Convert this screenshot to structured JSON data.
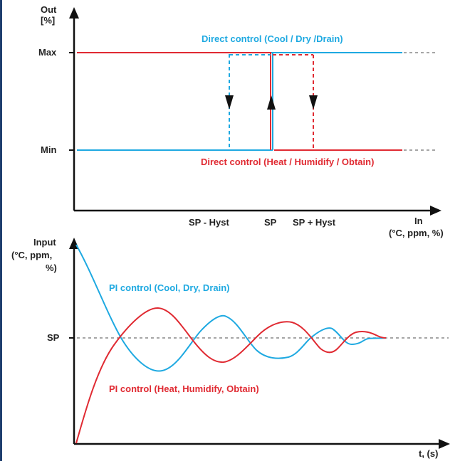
{
  "colors": {
    "blue": "#1ea9e1",
    "red": "#e02a32",
    "axis": "#111111",
    "dashed_grey": "#888888",
    "border": "#1f3f6e"
  },
  "top": {
    "y_axis_label_line1": "Out",
    "y_axis_label_line2": "[%]",
    "y_max": "Max",
    "y_min": "Min",
    "x_axis_label_line1": "In",
    "x_axis_label_line2": "(°C, ppm, %)",
    "x_ticks": [
      "SP - Hyst",
      "SP",
      "SP + Hyst"
    ],
    "blue_label": "Direct control (Cool / Dry /Drain)",
    "red_label": "Direct control (Heat / Humidify / Obtain)"
  },
  "bottom": {
    "y_axis_label_line1": "Input",
    "y_axis_label_line2": "(°C, ppm,",
    "y_axis_label_line3": "%)",
    "y_sp": "SP",
    "x_axis_label": "t, (s)",
    "blue_label": "PI control (Cool, Dry, Drain)",
    "red_label": "PI control (Heat, Humidify, Obtain)"
  }
}
